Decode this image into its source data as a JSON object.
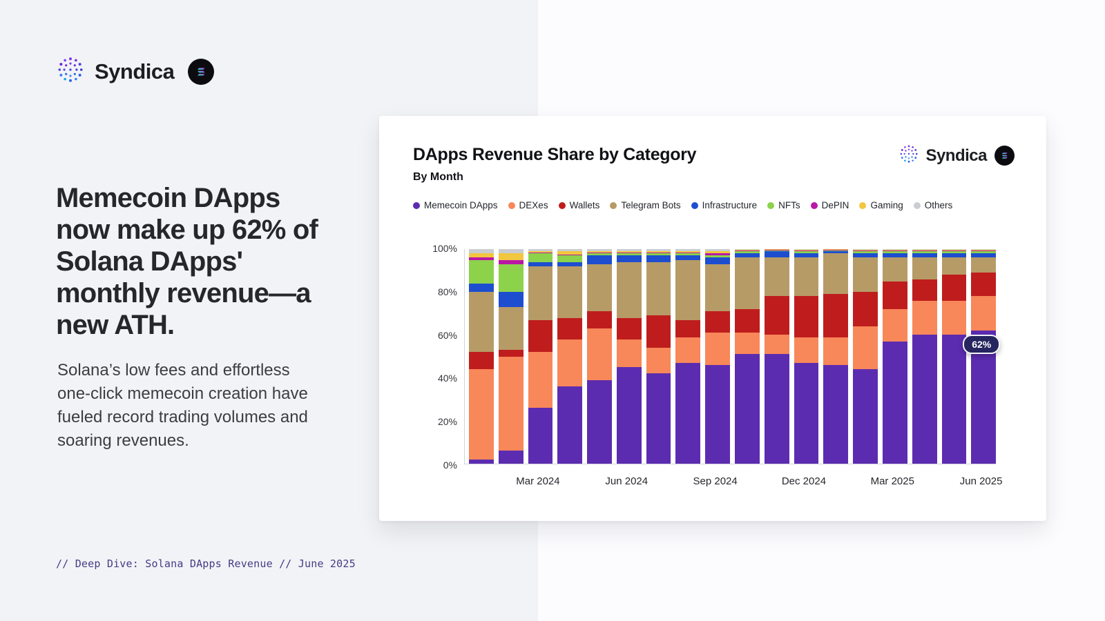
{
  "brand": {
    "name": "Syndica"
  },
  "left_panel": {
    "headline": "Memecoin DApps now make up 62% of Solana DApps' monthly revenue—a new ATH.",
    "body": "Solana’s low fees and effortless one-click memecoin creation have fueled record trading volumes and soaring revenues.",
    "footer": "// Deep Dive: Solana DApps Revenue // June 2025"
  },
  "card": {
    "title": "DApps Revenue Share by Category",
    "subtitle": "By Month",
    "brand_name": "Syndica"
  },
  "chart_data": {
    "type": "bar",
    "stacked": true,
    "title": "DApps Revenue Share by Category",
    "subtitle": "By Month",
    "ylim": [
      0,
      100
    ],
    "y_ticks": [
      "0%",
      "20%",
      "40%",
      "60%",
      "80%",
      "100%"
    ],
    "x": [
      "Jan 2024",
      "Feb 2024",
      "Mar 2024",
      "Apr 2024",
      "May 2024",
      "Jun 2024",
      "Jul 2024",
      "Aug 2024",
      "Sep 2024",
      "Oct 2024",
      "Nov 2024",
      "Dec 2024",
      "Jan 2025",
      "Feb 2025",
      "Mar 2025",
      "Apr 2025",
      "May 2025",
      "Jun 2025"
    ],
    "x_ticks": [
      {
        "index": 2,
        "label": "Mar 2024"
      },
      {
        "index": 5,
        "label": "Jun 2024"
      },
      {
        "index": 8,
        "label": "Sep 2024"
      },
      {
        "index": 11,
        "label": "Dec 2024"
      },
      {
        "index": 14,
        "label": "Mar 2025"
      },
      {
        "index": 17,
        "label": "Jun 2025"
      }
    ],
    "series": [
      {
        "name": "Memecoin DApps",
        "color": "#5c2cb0",
        "values": [
          2,
          6,
          26,
          36,
          39,
          45,
          42,
          47,
          46,
          51,
          51,
          47,
          46,
          44,
          57,
          60,
          60,
          62
        ]
      },
      {
        "name": "DEXes",
        "color": "#f8875a",
        "values": [
          42,
          44,
          26,
          22,
          24,
          13,
          12,
          12,
          15,
          10,
          9,
          12,
          13,
          20,
          15,
          16,
          16,
          16
        ]
      },
      {
        "name": "Wallets",
        "color": "#bf1d1d",
        "values": [
          8,
          3,
          15,
          10,
          8,
          10,
          15,
          8,
          10,
          11,
          18,
          19,
          20,
          16,
          13,
          10,
          12,
          11
        ]
      },
      {
        "name": "Telegram Bots",
        "color": "#b79b66",
        "values": [
          28,
          20,
          25,
          24,
          22,
          26,
          25,
          28,
          22,
          24,
          18,
          18,
          19,
          16,
          11,
          10,
          8,
          7
        ]
      },
      {
        "name": "Infrastructure",
        "color": "#1d4ecf",
        "values": [
          4,
          7,
          2,
          2,
          4,
          3,
          3,
          2,
          3,
          2,
          3,
          2,
          1,
          2,
          2,
          2,
          2,
          2
        ]
      },
      {
        "name": "NFTs",
        "color": "#8cd24b",
        "values": [
          11,
          13,
          4,
          3,
          1,
          1,
          1,
          1,
          1,
          1,
          0.5,
          1,
          0.5,
          1,
          1,
          1,
          1,
          1
        ]
      },
      {
        "name": "DePIN",
        "color": "#ba17a6",
        "values": [
          1,
          2,
          0.5,
          0.5,
          0.5,
          0.5,
          0.5,
          0.5,
          1,
          0.5,
          0.2,
          0.3,
          0.2,
          0.3,
          0.3,
          0.3,
          0.3,
          0.3
        ]
      },
      {
        "name": "Gaming",
        "color": "#f2c63f",
        "values": [
          2,
          3,
          0.5,
          1.5,
          0.5,
          0.5,
          0.5,
          0.5,
          1,
          0.3,
          0.2,
          0.4,
          0.2,
          0.4,
          0.4,
          0.4,
          0.4,
          0.4
        ]
      },
      {
        "name": "Others",
        "color": "#c9cdd2",
        "values": [
          2,
          2,
          1,
          1,
          1,
          1,
          1,
          1,
          1,
          0.2,
          0.1,
          0.3,
          0.1,
          0.3,
          0.3,
          0.3,
          0.3,
          0.3
        ]
      }
    ],
    "annotation": {
      "text": "62%",
      "x": "Jun 2025",
      "y": 62,
      "series": "Memecoin DApps"
    }
  }
}
